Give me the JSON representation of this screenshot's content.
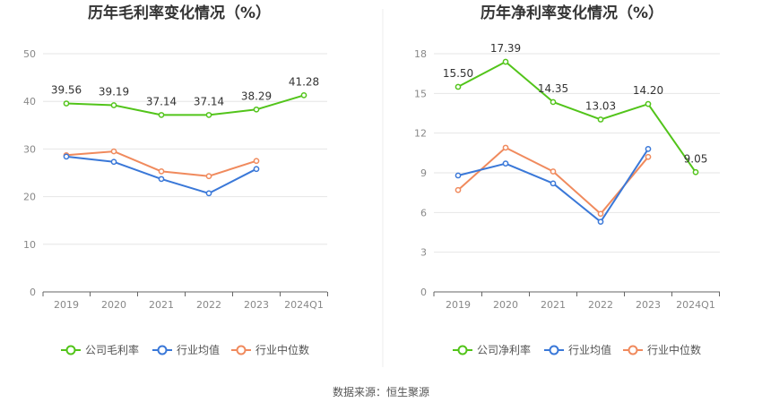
{
  "source": "数据来源：恒生聚源",
  "chart_data": [
    {
      "type": "line",
      "title": "历年毛利率变化情况（%）",
      "categories": [
        "2019",
        "2020",
        "2021",
        "2022",
        "2023",
        "2024Q1"
      ],
      "ylim": [
        0,
        50
      ],
      "yticks": [
        "0",
        "10",
        "20",
        "30",
        "40",
        "50"
      ],
      "grid": true,
      "legend_position": "bottom",
      "series": [
        {
          "name": "公司毛利率",
          "color": "#52c41a",
          "values": [
            39.56,
            39.19,
            37.14,
            37.14,
            38.29,
            41.28
          ],
          "labels": [
            "39.56",
            "39.19",
            "37.14",
            "37.14",
            "38.29",
            "41.28"
          ]
        },
        {
          "name": "行业均值",
          "color": "#3a78d8",
          "values": [
            28.4,
            27.3,
            23.7,
            20.7,
            25.8,
            null
          ]
        },
        {
          "name": "行业中位数",
          "color": "#f08a5d",
          "values": [
            28.7,
            29.5,
            25.3,
            24.3,
            27.5,
            null
          ]
        }
      ]
    },
    {
      "type": "line",
      "title": "历年净利率变化情况（%）",
      "categories": [
        "2019",
        "2020",
        "2021",
        "2022",
        "2023",
        "2024Q1"
      ],
      "ylim": [
        0,
        18
      ],
      "yticks": [
        "0",
        "3",
        "6",
        "9",
        "12",
        "15",
        "18"
      ],
      "grid": true,
      "legend_position": "bottom",
      "series": [
        {
          "name": "公司净利率",
          "color": "#52c41a",
          "values": [
            15.5,
            17.39,
            14.35,
            13.03,
            14.2,
            9.05
          ],
          "labels": [
            "15.50",
            "17.39",
            "14.35",
            "13.03",
            "14.20",
            "9.05"
          ]
        },
        {
          "name": "行业均值",
          "color": "#3a78d8",
          "values": [
            8.8,
            9.7,
            8.2,
            5.3,
            10.8,
            null
          ]
        },
        {
          "name": "行业中位数",
          "color": "#f08a5d",
          "values": [
            7.7,
            10.9,
            9.1,
            5.9,
            10.2,
            null
          ]
        }
      ]
    }
  ]
}
